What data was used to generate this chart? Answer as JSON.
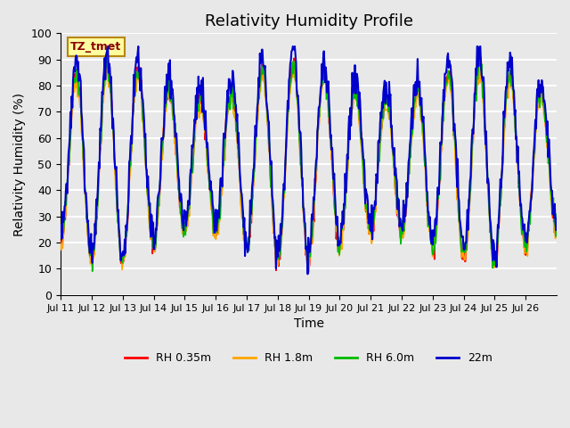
{
  "title": "Relativity Humidity Profile",
  "xlabel": "Time",
  "ylabel": "Relativity Humidity (%)",
  "ylim": [
    0,
    100
  ],
  "yticks": [
    0,
    10,
    20,
    30,
    40,
    50,
    60,
    70,
    80,
    90,
    100
  ],
  "x_labels": [
    "Jul 11",
    "Jul 12",
    "Jul 13",
    "Jul 14",
    "Jul 15",
    "Jul 16",
    "Jul 17",
    "Jul 18",
    "Jul 19",
    "Jul 20",
    "Jul 21",
    "Jul 22",
    "Jul 23",
    "Jul 24",
    "Jul 25",
    "Jul 26"
  ],
  "annotation_text": "TZ_tmet",
  "annotation_color": "#8B0000",
  "annotation_bg": "#FFFFA0",
  "annotation_border": "#B8860B",
  "series": [
    {
      "label": "RH 0.35m",
      "color": "#FF0000"
    },
    {
      "label": "RH 1.8m",
      "color": "#FFA500"
    },
    {
      "label": "RH 6.0m",
      "color": "#00BB00"
    },
    {
      "label": "22m",
      "color": "#0000CD"
    }
  ],
  "plot_bg": "#E8E8E8",
  "grid_color": "#FFFFFF",
  "title_fontsize": 13,
  "axis_fontsize": 10,
  "tick_fontsize": 9
}
